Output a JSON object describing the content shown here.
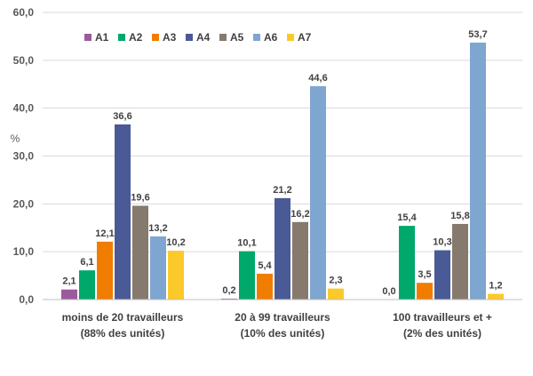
{
  "chart_data": {
    "type": "bar",
    "title": "",
    "xlabel": "",
    "ylabel": "%",
    "ylim": [
      0,
      60
    ],
    "y_ticks": [
      "0,0",
      "10,0",
      "20,0",
      "30,0",
      "40,0",
      "50,0",
      "60,0"
    ],
    "grid": true,
    "legend_position": "top-left",
    "categories": [
      [
        "moins de 20 travailleurs",
        "(88% des unités)"
      ],
      [
        "20 à 99 travailleurs",
        "(10% des unités)"
      ],
      [
        "100 travailleurs et +",
        "(2% des unités)"
      ]
    ],
    "series": [
      {
        "name": "A1",
        "color": "#9b5a9e",
        "values": [
          2.1,
          0.2,
          0.0
        ],
        "labels": [
          "2,1",
          "0,2",
          "0,0"
        ]
      },
      {
        "name": "A2",
        "color": "#00a86b",
        "values": [
          6.1,
          10.1,
          15.4
        ],
        "labels": [
          "6,1",
          "10,1",
          "15,4"
        ]
      },
      {
        "name": "A3",
        "color": "#f07d00",
        "values": [
          12.1,
          5.4,
          3.5
        ],
        "labels": [
          "12,1",
          "5,4",
          "3,5"
        ]
      },
      {
        "name": "A4",
        "color": "#4a5a96",
        "values": [
          36.6,
          21.2,
          10.3
        ],
        "labels": [
          "36,6",
          "21,2",
          "10,3"
        ]
      },
      {
        "name": "A5",
        "color": "#857a6d",
        "values": [
          19.6,
          16.2,
          15.8
        ],
        "labels": [
          "19,6",
          "16,2",
          "15,8"
        ]
      },
      {
        "name": "A6",
        "color": "#7fa6d0",
        "values": [
          13.2,
          44.6,
          53.7
        ],
        "labels": [
          "13,2",
          "44,6",
          "53,7"
        ]
      },
      {
        "name": "A7",
        "color": "#fcc92a",
        "values": [
          10.2,
          2.3,
          1.2
        ],
        "labels": [
          "10,2",
          "2,3",
          "1,2"
        ]
      }
    ]
  }
}
